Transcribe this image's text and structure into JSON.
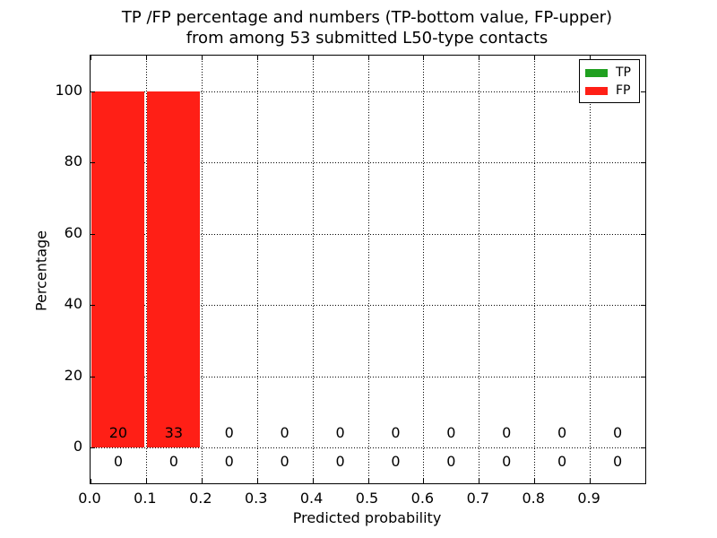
{
  "figure": {
    "title_lines": [
      "TP /FP percentage and numbers (TP-bottom value, FP-upper)",
      "from among 53 submitted L50-type contacts"
    ],
    "xlabel": "Predicted probability",
    "ylabel": "Percentage"
  },
  "chart_data": {
    "type": "bar",
    "title": "TP /FP percentage and numbers (TP-bottom value, FP-upper) from among 53 submitted L50-type contacts",
    "xlabel": "Predicted probability",
    "ylabel": "Percentage",
    "total_contacts": 53,
    "xlim": [
      0.0,
      1.0
    ],
    "ylim": [
      -10,
      110
    ],
    "xticks": [
      0.0,
      0.1,
      0.2,
      0.3,
      0.4,
      0.5,
      0.6,
      0.7,
      0.8,
      0.9
    ],
    "xtick_labels": [
      "0.0",
      "0.1",
      "0.2",
      "0.3",
      "0.4",
      "0.5",
      "0.6",
      "0.7",
      "0.8",
      "0.9"
    ],
    "yticks": [
      0,
      20,
      40,
      60,
      80,
      100
    ],
    "ytick_labels": [
      "0",
      "20",
      "40",
      "60",
      "80",
      "100"
    ],
    "bin_edges": [
      0.0,
      0.1,
      0.2,
      0.3,
      0.4,
      0.5,
      0.6,
      0.7,
      0.8,
      0.9,
      1.0
    ],
    "grid": "dotted",
    "legend_position": "upper right",
    "series": [
      {
        "name": "TP",
        "color": "#20a020",
        "percent": [
          0,
          0,
          0,
          0,
          0,
          0,
          0,
          0,
          0,
          0
        ],
        "counts": [
          0,
          0,
          0,
          0,
          0,
          0,
          0,
          0,
          0,
          0
        ],
        "count_label_row": "bottom"
      },
      {
        "name": "FP",
        "color": "#ff1f16",
        "percent": [
          100,
          100,
          0,
          0,
          0,
          0,
          0,
          0,
          0,
          0
        ],
        "counts": [
          20,
          33,
          0,
          0,
          0,
          0,
          0,
          0,
          0,
          0
        ],
        "count_label_row": "top"
      }
    ]
  }
}
